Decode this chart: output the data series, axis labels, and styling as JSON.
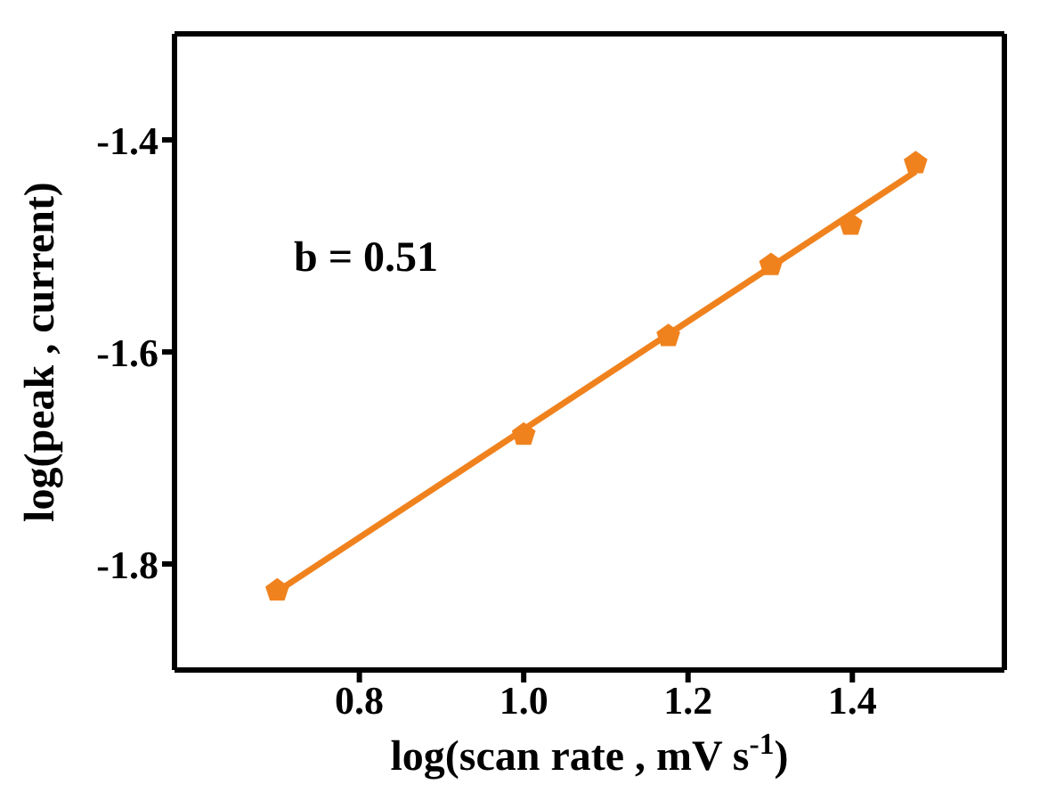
{
  "chart_data": {
    "type": "scatter",
    "xlabel": "log(scan rate , mV s$^{-1}$)",
    "ylabel": "log(peak , current)",
    "annotations": [
      "b = 0.51"
    ],
    "xlim": [
      0.575,
      1.585
    ],
    "ylim": [
      -1.9,
      -1.3
    ],
    "xticks": [
      0.8,
      {
        "value": 1,
        "label": "1.0"
      },
      1.2,
      1.4
    ],
    "yticks": [
      -1.8,
      -1.6,
      -1.4
    ],
    "series": [
      {
        "color": "#f0821e",
        "x": [
          0.7,
          1.0,
          1.176,
          1.301,
          1.398,
          1.477
        ],
        "values": [
          -1.825,
          -1.678,
          -1.585,
          -1.518,
          -1.48,
          -1.422
        ]
      },
      {
        "type": "line",
        "color": "#f0821e",
        "marker": "none",
        "x": [
          0.7,
          1.477
        ],
        "values": [
          -1.826,
          -1.43
        ]
      }
    ]
  }
}
